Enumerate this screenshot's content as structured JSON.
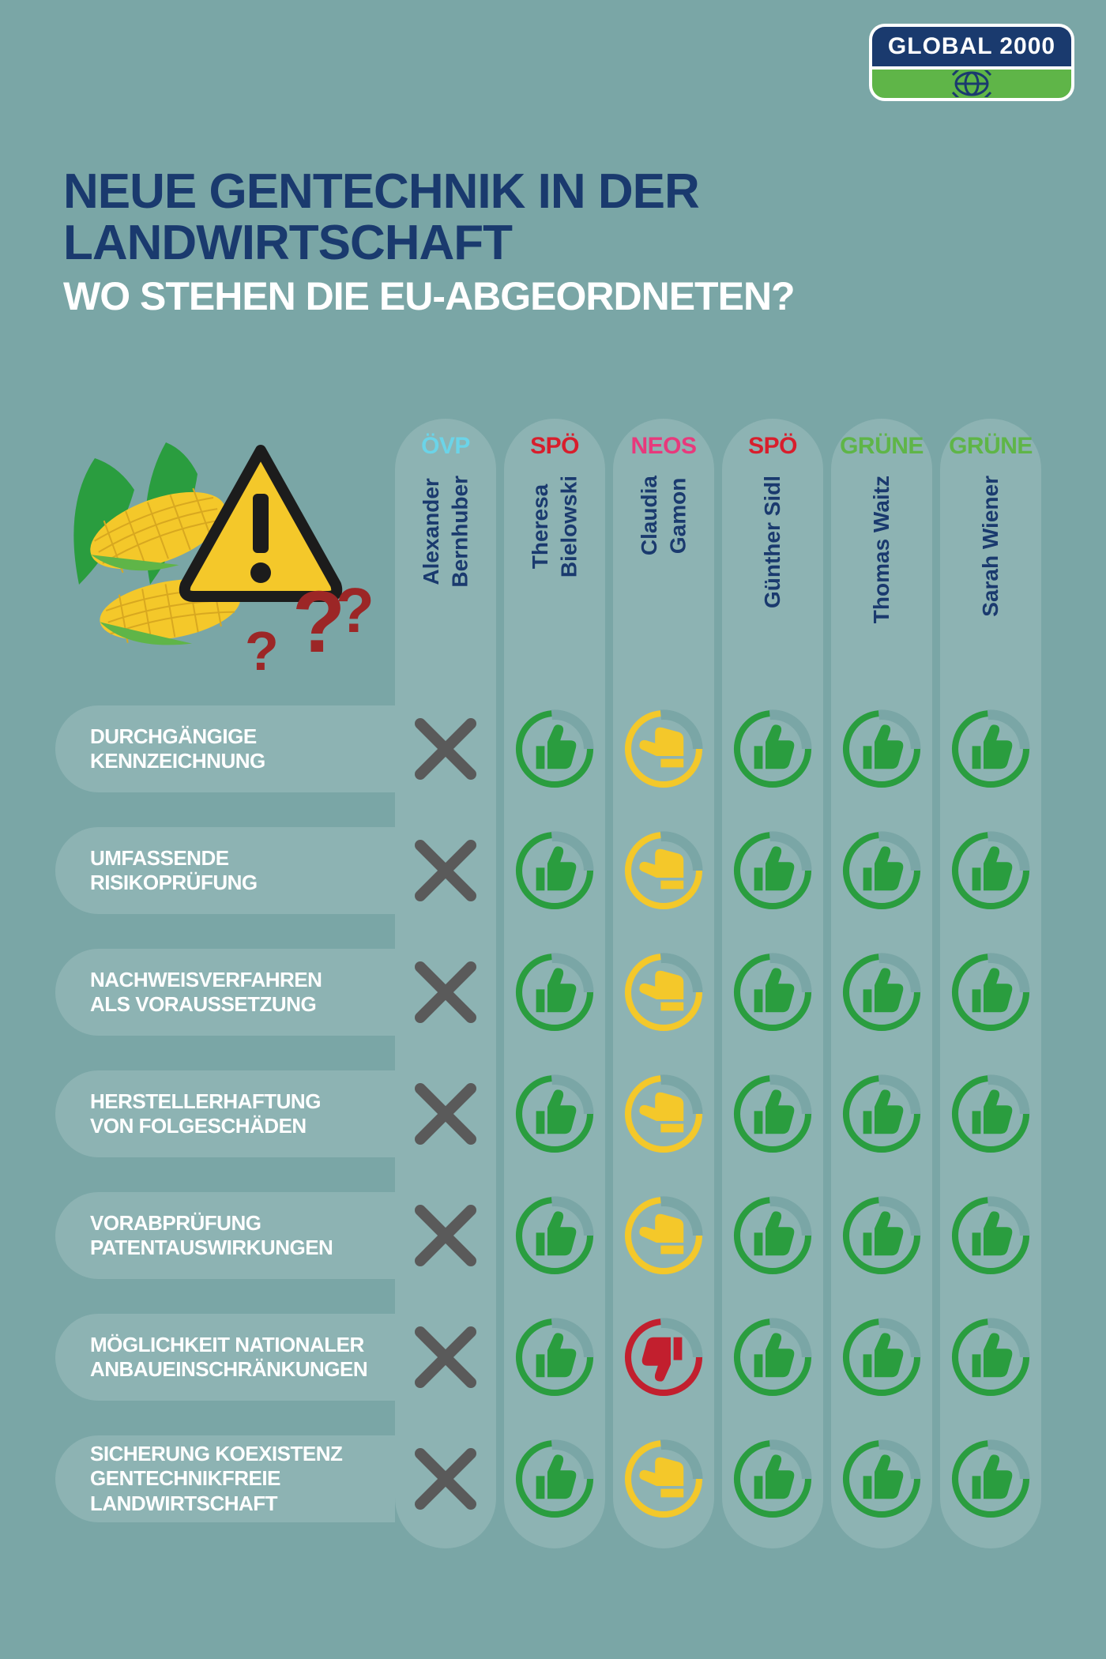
{
  "logo": {
    "text": "GLOBAL 2000"
  },
  "title_line1": "NEUE GENTECHNIK IN DER",
  "title_line2": "LANDWIRTSCHAFT",
  "subtitle": "WO STEHEN DIE EU-ABGEORDNETEN?",
  "colors": {
    "bg": "#7aa6a6",
    "navy": "#1a3a6e",
    "white": "#ffffff",
    "ovp": "#6bd4e8",
    "spo": "#d81e2c",
    "neos": "#e8397c",
    "grune": "#5fb548",
    "x_gray": "#5a5a5a",
    "thumb_green": "#2a9d3f",
    "thumb_yellow": "#f4c82a",
    "thumb_red": "#c21f2e",
    "warn_yellow": "#f4c82a",
    "qmark_red": "#9c2626"
  },
  "columns": [
    {
      "party": "ÖVP",
      "party_color": "ovp",
      "name": "Alexander\nBernhuber"
    },
    {
      "party": "SPÖ",
      "party_color": "spo",
      "name": "Theresa\nBielowski"
    },
    {
      "party": "NEOS",
      "party_color": "neos",
      "name": "Claudia\nGamon"
    },
    {
      "party": "SPÖ",
      "party_color": "spo",
      "name": "Günther Sidl"
    },
    {
      "party": "GRÜNE",
      "party_color": "grune",
      "name": "Thomas Waitz"
    },
    {
      "party": "GRÜNE",
      "party_color": "grune",
      "name": "Sarah Wiener"
    }
  ],
  "rows": [
    {
      "label": "DURCHGÄNGIGE\nKENNZEICHNUNG",
      "cells": [
        "x",
        "up-green",
        "side-yellow",
        "up-green",
        "up-green",
        "up-green"
      ]
    },
    {
      "label": "UMFASSENDE\nRISIKOPRÜFUNG",
      "cells": [
        "x",
        "up-green",
        "side-yellow",
        "up-green",
        "up-green",
        "up-green"
      ]
    },
    {
      "label": "NACHWEISVERFAHREN\nALS VORAUSSETZUNG",
      "cells": [
        "x",
        "up-green",
        "side-yellow",
        "up-green",
        "up-green",
        "up-green"
      ]
    },
    {
      "label": "HERSTELLERHAFTUNG\nVON FOLGESCHÄDEN",
      "cells": [
        "x",
        "up-green",
        "side-yellow",
        "up-green",
        "up-green",
        "up-green"
      ]
    },
    {
      "label": "VORABPRÜFUNG\nPATENTAUSWIRKUNGEN",
      "cells": [
        "x",
        "up-green",
        "side-yellow",
        "up-green",
        "up-green",
        "up-green"
      ]
    },
    {
      "label": "MÖGLICHKEIT NATIONALER\nANBAUEINSCHRÄNKUNGEN",
      "cells": [
        "x",
        "up-green",
        "down-red",
        "up-green",
        "up-green",
        "up-green"
      ]
    },
    {
      "label": "SICHERUNG KOEXISTENZ\nGENTECHNIKFREIE\nLANDWIRTSCHAFT",
      "cells": [
        "x",
        "up-green",
        "side-yellow",
        "up-green",
        "up-green",
        "up-green"
      ]
    }
  ]
}
